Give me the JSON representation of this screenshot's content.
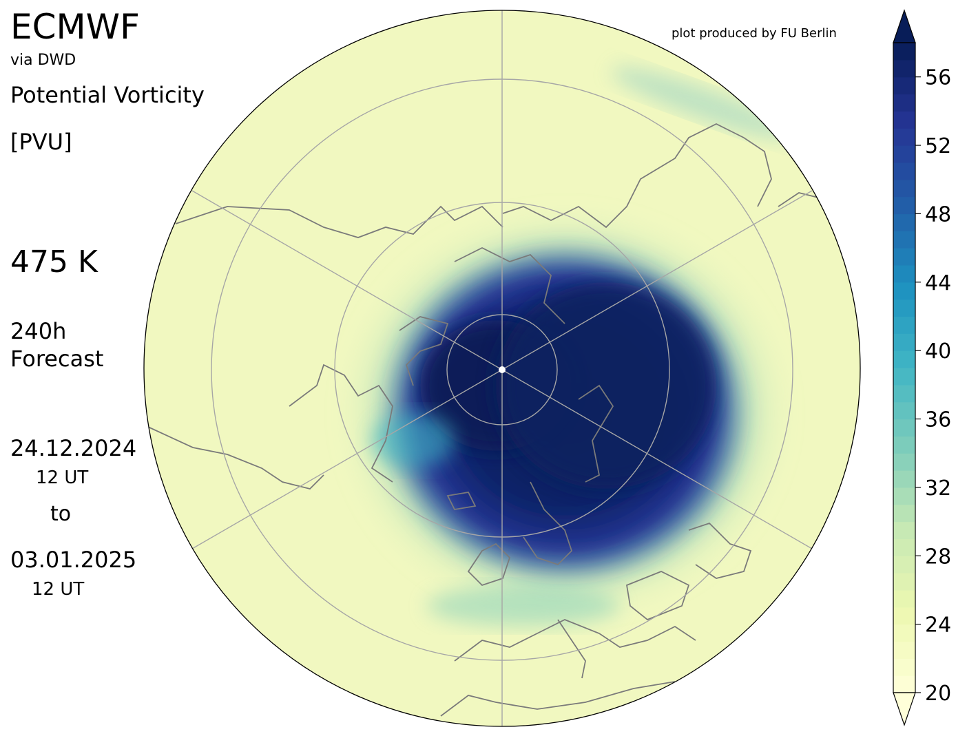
{
  "header": {
    "provider": "ECMWF",
    "source": "via DWD",
    "quantity": "Potential Vorticity",
    "unit": "[PVU]",
    "level": "475 K",
    "lead_time": [
      "240h",
      "Forecast"
    ],
    "init_date": "24.12.2024",
    "init_time": "12 UT",
    "to_word": "to",
    "valid_date": "03.01.2025",
    "valid_time": "12 UT",
    "credit": "plot produced by FU Berlin"
  },
  "map": {
    "projection": "north polar stereographic",
    "graticule_color": "#a6a6a6",
    "coastline_color": "#7a7a7a"
  },
  "colorbar": {
    "min": 20,
    "max": 58,
    "step": 1,
    "extend": "both",
    "ticks": [
      "20",
      "24",
      "28",
      "32",
      "36",
      "40",
      "44",
      "48",
      "52",
      "56"
    ],
    "colormap": [
      "#ffffd9",
      "#edf8b1",
      "#c7e9b4",
      "#7fcdbb",
      "#41b6c4",
      "#1d91c0",
      "#225ea8",
      "#253494",
      "#081d58"
    ]
  }
}
